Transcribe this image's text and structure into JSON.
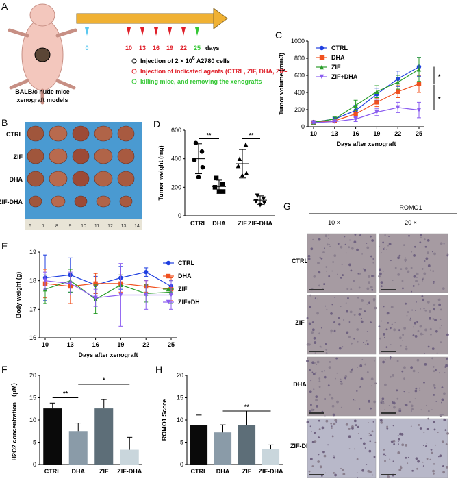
{
  "panel_labels": {
    "A": "A",
    "B": "B",
    "C": "C",
    "D": "D",
    "E": "E",
    "F": "F",
    "G": "G",
    "H": "H"
  },
  "colors": {
    "ctrl": "#1f3fe0",
    "dha": "#f0501e",
    "zif": "#2a9d2a",
    "zifdha": "#8a5cf0",
    "bar_ctrl": "#0a0a0a",
    "bar_dha": "#8a9ba8",
    "bar_zif": "#5d6e78",
    "bar_zifdha": "#c9d6dc",
    "arrow": "#f0b133",
    "mouse": "#f3c7bd"
  },
  "panelA": {
    "mouse_caption_line1": "BALB/c nude mice",
    "mouse_caption_line2": "xenograft models",
    "day0": "0",
    "days": [
      "10",
      "13",
      "16",
      "19",
      "22",
      "25"
    ],
    "days_label": "days",
    "legend_injection_cells": "Injection of  2 × 10",
    "legend_injection_sup": "6",
    "legend_injection_cells_tail": " A2780 cells",
    "legend_agents": "Injection of indicated agents (CTRL, ZIF, DHA, ZIF-DHA)",
    "legend_killing": "killing mice, and removing the xenografts"
  },
  "panelB": {
    "rows": [
      "CTRL",
      "ZIF",
      "DHA",
      "ZIF-DHA"
    ],
    "ruler": [
      "6",
      "7",
      "8",
      "9",
      "10",
      "11",
      "12",
      "13",
      "14"
    ]
  },
  "chart_data": [
    {
      "id": "C",
      "type": "line",
      "title": "",
      "xlabel": "Days after xenograft",
      "ylabel": "Tumor volume (mm3)",
      "x": [
        10,
        13,
        16,
        19,
        22,
        25
      ],
      "ylim": [
        0,
        1000
      ],
      "yticks": [
        0,
        200,
        400,
        600,
        800,
        1000
      ],
      "series": [
        {
          "name": "CTRL",
          "values": [
            55,
            90,
            190,
            380,
            560,
            700
          ],
          "err": [
            10,
            20,
            60,
            70,
            90,
            110
          ]
        },
        {
          "name": "DHA",
          "values": [
            50,
            70,
            150,
            285,
            410,
            500
          ],
          "err": [
            10,
            20,
            40,
            50,
            70,
            100
          ]
        },
        {
          "name": "ZIF",
          "values": [
            52,
            90,
            250,
            410,
            520,
            670
          ],
          "err": [
            10,
            25,
            60,
            70,
            80,
            140
          ]
        },
        {
          "name": "ZIF+DHA",
          "values": [
            48,
            60,
            90,
            170,
            225,
            195
          ],
          "err": [
            10,
            15,
            30,
            40,
            60,
            90
          ]
        }
      ],
      "significance": [
        "*",
        "*"
      ]
    },
    {
      "id": "D",
      "type": "scatter",
      "title": "",
      "xlabel": "",
      "ylabel": "Tumor weight (mg)",
      "categories": [
        "CTRL",
        "DHA",
        "ZIF",
        "ZIF-DHA"
      ],
      "ylim": [
        0,
        600
      ],
      "yticks": [
        0,
        200,
        400,
        600
      ],
      "points": [
        [
          510,
          450,
          390,
          340,
          270
        ],
        [
          265,
          220,
          200,
          170,
          170
        ],
        [
          400,
          500,
          350,
          300,
          285
        ],
        [
          140,
          120,
          100,
          90,
          75
        ]
      ],
      "means": [
        400,
        205,
        365,
        110
      ],
      "sd": [
        105,
        45,
        100,
        30
      ],
      "significance": [
        "**",
        "**"
      ]
    },
    {
      "id": "E",
      "type": "line",
      "title": "",
      "xlabel": "Days after xenograft",
      "ylabel": "Body weight (g)",
      "x": [
        10,
        13,
        16,
        19,
        22,
        25
      ],
      "ylim": [
        16,
        19
      ],
      "yticks": [
        16,
        17,
        18,
        19
      ],
      "series": [
        {
          "name": "CTRL",
          "values": [
            18.1,
            18.2,
            17.85,
            18.1,
            18.3,
            17.8
          ],
          "err": [
            0.8,
            0.6,
            0.3,
            0.4,
            0.15,
            0.3
          ]
        },
        {
          "name": "DHA",
          "values": [
            17.9,
            17.8,
            17.9,
            17.9,
            17.8,
            17.7
          ],
          "err": [
            0.5,
            0.6,
            0.35,
            0.3,
            0.2,
            0.4
          ]
        },
        {
          "name": "ZIF",
          "values": [
            17.7,
            18.0,
            17.35,
            17.85,
            17.55,
            17.6
          ],
          "err": [
            0.5,
            0.4,
            0.5,
            0.35,
            0.3,
            0.4
          ]
        },
        {
          "name": "ZIF+DHA",
          "values": [
            18.0,
            17.9,
            17.4,
            17.5,
            17.5,
            17.5
          ],
          "err": [
            0.3,
            0.4,
            0.3,
            1.1,
            0.5,
            0.5
          ]
        }
      ]
    },
    {
      "id": "F",
      "type": "bar",
      "title": "",
      "xlabel": "",
      "ylabel": "H2O2 concentration （μM）",
      "categories": [
        "CTRL",
        "DHA",
        "ZIF",
        "ZIF-DHA"
      ],
      "ylim": [
        0,
        20
      ],
      "yticks": [
        0,
        5,
        10,
        15,
        20
      ],
      "values": [
        12.6,
        7.5,
        12.6,
        3.3
      ],
      "err": [
        1.2,
        1.8,
        2.0,
        2.8
      ],
      "significance": [
        "**",
        "*"
      ]
    },
    {
      "id": "H",
      "type": "bar",
      "title": "",
      "xlabel": "",
      "ylabel": "ROMO1 Score",
      "categories": [
        "CTRL",
        "DHA",
        "ZIF",
        "ZIF-DHA"
      ],
      "ylim": [
        0,
        20
      ],
      "yticks": [
        0,
        5,
        10,
        15,
        20
      ],
      "values": [
        8.9,
        7.2,
        8.9,
        3.4
      ],
      "err": [
        2.2,
        1.7,
        3.1,
        1.0
      ],
      "significance": [
        "**"
      ]
    }
  ],
  "panelG": {
    "title": "ROMO1",
    "cols": [
      "10 ×",
      "20 ×"
    ],
    "rows": [
      "CTRL",
      "ZIF",
      "DHA",
      "ZIF-DHA"
    ]
  }
}
